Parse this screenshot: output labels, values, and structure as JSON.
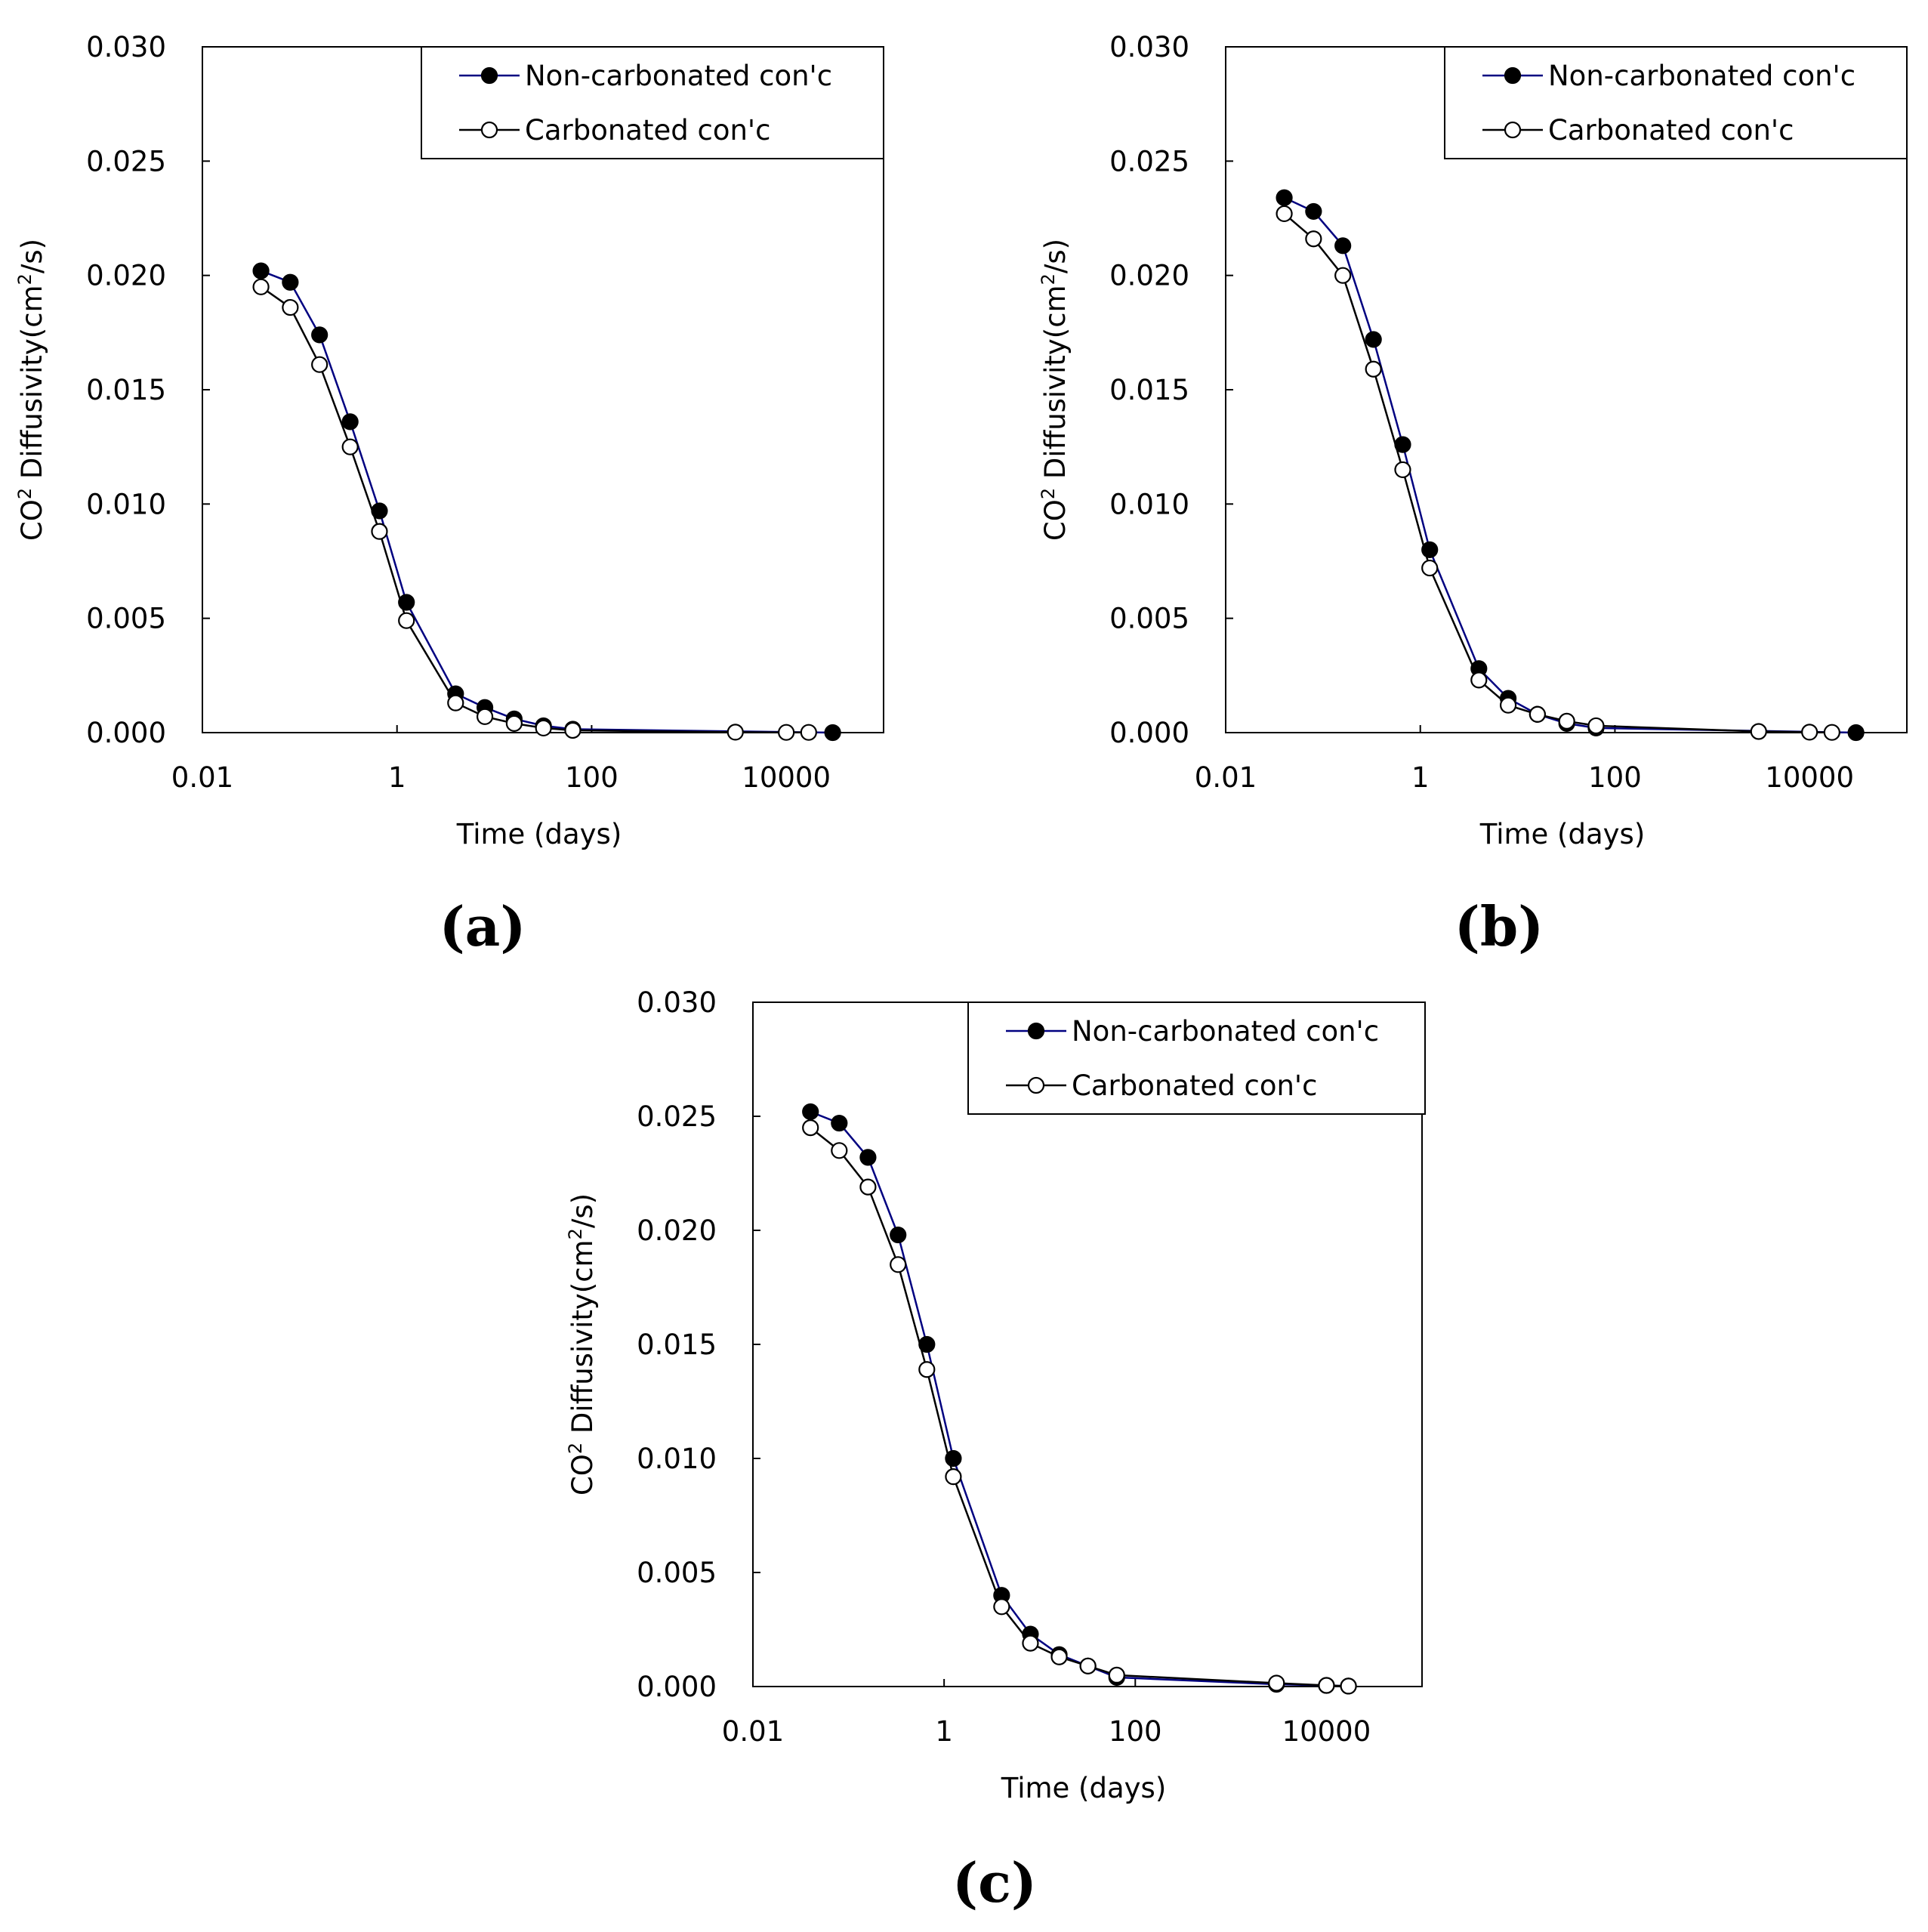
{
  "colors": {
    "series_line_1": "#000080",
    "series_line_2": "#000000",
    "marker_fill_1": "#000000",
    "marker_fill_2": "#ffffff",
    "frame": "#000000"
  },
  "chart_data": [
    {
      "type": "line",
      "panel_label": "(a)",
      "xlabel": "Time (days)",
      "ylabel_prefix": "CO",
      "ylabel_sup1": "2",
      "ylabel_mid": " Diffusivity(cm",
      "ylabel_sup2": "2",
      "ylabel_suffix": "/s)",
      "x_scale": "log",
      "xlim": [
        0.01,
        100000
      ],
      "ylim": [
        0,
        0.03
      ],
      "x_ticks": [
        0.01,
        1,
        100,
        10000
      ],
      "x_tick_labels": [
        "0.01",
        "1",
        "100",
        "10000"
      ],
      "y_ticks": [
        0,
        0.005,
        0.01,
        0.015,
        0.02,
        0.025,
        0.03
      ],
      "y_tick_labels": [
        "0.000",
        "0.005",
        "0.010",
        "0.015",
        "0.020",
        "0.025",
        "0.030"
      ],
      "legend_position": "top-right",
      "series": [
        {
          "name": "Non-carbonated con'c",
          "marker": "filled-circle",
          "x": [
            0.04,
            0.08,
            0.16,
            0.33,
            0.66,
            1.25,
            4,
            8,
            16,
            32,
            64,
            30000
          ],
          "y": [
            0.0202,
            0.0197,
            0.0174,
            0.0136,
            0.0097,
            0.0057,
            0.0017,
            0.0011,
            0.0006,
            0.0003,
            0.00015,
            0.0
          ]
        },
        {
          "name": "Carbonated con'c",
          "marker": "open-circle",
          "x": [
            0.04,
            0.08,
            0.16,
            0.33,
            0.66,
            1.25,
            4,
            8,
            16,
            32,
            64,
            3000,
            10000,
            17000
          ],
          "y": [
            0.0195,
            0.0186,
            0.0161,
            0.0125,
            0.0088,
            0.0049,
            0.0013,
            0.0007,
            0.0004,
            0.0002,
            0.0001,
            2e-05,
            1e-05,
            1e-05
          ]
        }
      ]
    },
    {
      "type": "line",
      "panel_label": "(b)",
      "xlabel": "Time (days)",
      "ylabel_prefix": "CO",
      "ylabel_sup1": "2",
      "ylabel_mid": " Diffusivity(cm",
      "ylabel_sup2": "2",
      "ylabel_suffix": "/s)",
      "x_scale": "log",
      "xlim": [
        0.01,
        100000
      ],
      "ylim": [
        0,
        0.03
      ],
      "x_ticks": [
        0.01,
        1,
        100,
        10000
      ],
      "x_tick_labels": [
        "0.01",
        "1",
        "100",
        "10000"
      ],
      "y_ticks": [
        0,
        0.005,
        0.01,
        0.015,
        0.02,
        0.025,
        0.03
      ],
      "y_tick_labels": [
        "0.000",
        "0.005",
        "0.010",
        "0.015",
        "0.020",
        "0.025",
        "0.030"
      ],
      "legend_position": "top-right",
      "series": [
        {
          "name": "Non-carbonated con'c",
          "marker": "filled-circle",
          "x": [
            0.04,
            0.08,
            0.16,
            0.33,
            0.66,
            1.25,
            4,
            8,
            16,
            32,
            64,
            30000
          ],
          "y": [
            0.0234,
            0.0228,
            0.0213,
            0.0172,
            0.0126,
            0.008,
            0.0028,
            0.0015,
            0.0008,
            0.0004,
            0.0002,
            0.0
          ]
        },
        {
          "name": "Carbonated con'c",
          "marker": "open-circle",
          "x": [
            0.04,
            0.08,
            0.16,
            0.33,
            0.66,
            1.25,
            4,
            8,
            16,
            32,
            64,
            3000,
            10000,
            17000
          ],
          "y": [
            0.0227,
            0.0216,
            0.02,
            0.0159,
            0.0115,
            0.0072,
            0.0023,
            0.0012,
            0.0008,
            0.0005,
            0.0003,
            5e-05,
            2e-05,
            1e-05
          ]
        }
      ]
    },
    {
      "type": "line",
      "panel_label": "(c)",
      "xlabel": "Time (days)",
      "ylabel_prefix": "CO",
      "ylabel_sup1": "2",
      "ylabel_mid": " Diffusivity(cm",
      "ylabel_sup2": "2",
      "ylabel_suffix": "/s)",
      "x_scale": "log",
      "xlim": [
        0.01,
        100000
      ],
      "ylim": [
        0,
        0.03
      ],
      "x_ticks": [
        0.01,
        1,
        100,
        10000
      ],
      "x_tick_labels": [
        "0.01",
        "1",
        "100",
        "10000"
      ],
      "y_ticks": [
        0,
        0.005,
        0.01,
        0.015,
        0.02,
        0.025,
        0.03
      ],
      "y_tick_labels": [
        "0.000",
        "0.005",
        "0.010",
        "0.015",
        "0.020",
        "0.025",
        "0.030"
      ],
      "legend_position": "top-right",
      "series": [
        {
          "name": "Non-carbonated con'c",
          "marker": "filled-circle",
          "x": [
            0.04,
            0.08,
            0.16,
            0.33,
            0.66,
            1.25,
            4,
            8,
            16,
            32,
            64,
            3000,
            10000,
            17000
          ],
          "y": [
            0.0252,
            0.0247,
            0.0232,
            0.0198,
            0.015,
            0.01,
            0.004,
            0.0023,
            0.0014,
            0.0009,
            0.0004,
            0.0001,
            5e-05,
            2e-05
          ]
        },
        {
          "name": "Carbonated con'c",
          "marker": "open-circle",
          "x": [
            0.04,
            0.08,
            0.16,
            0.33,
            0.66,
            1.25,
            4,
            8,
            16,
            32,
            64,
            3000,
            10000,
            17000
          ],
          "y": [
            0.0245,
            0.0235,
            0.0219,
            0.0185,
            0.0139,
            0.0092,
            0.0035,
            0.0019,
            0.0013,
            0.0009,
            0.0005,
            0.00015,
            5e-05,
            2e-05
          ]
        }
      ]
    }
  ]
}
